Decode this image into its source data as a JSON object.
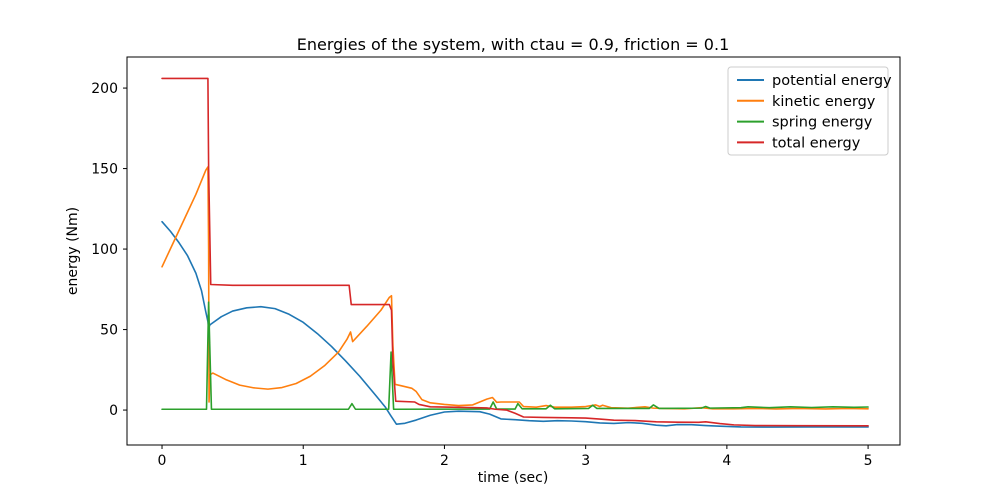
{
  "title": "Energies of the system, with ctau = 0.9, friction = 0.1",
  "chart_data": {
    "type": "line",
    "title": "Energies of the system, with ctau = 0.9, friction = 0.1",
    "xlabel": "time (sec)",
    "ylabel": "energy (Nm)",
    "xlim": [
      -0.248,
      5.226
    ],
    "ylim": [
      -21.7,
      219.3
    ],
    "x_ticks": [
      0,
      1,
      2,
      3,
      4,
      5
    ],
    "y_ticks": [
      0,
      50,
      100,
      150,
      200
    ],
    "grid": false,
    "legend_position": "upper right",
    "background_color": "#ffffff",
    "spine_color": "#000000",
    "legend_border_color": "#cccccc",
    "series": [
      {
        "name": "potential energy",
        "color": "#1f77b4",
        "points": [
          [
            0,
            117
          ],
          [
            0.06,
            111
          ],
          [
            0.12,
            104
          ],
          [
            0.18,
            96
          ],
          [
            0.24,
            85
          ],
          [
            0.28,
            74
          ],
          [
            0.31,
            61
          ],
          [
            0.325,
            55
          ],
          [
            0.33,
            51
          ],
          [
            0.34,
            53
          ],
          [
            0.42,
            58
          ],
          [
            0.5,
            61.5
          ],
          [
            0.6,
            63.5
          ],
          [
            0.7,
            64.2
          ],
          [
            0.8,
            63
          ],
          [
            0.9,
            59.5
          ],
          [
            1.0,
            54.5
          ],
          [
            1.1,
            47.5
          ],
          [
            1.2,
            39.5
          ],
          [
            1.3,
            30.5
          ],
          [
            1.4,
            21
          ],
          [
            1.5,
            10.5
          ],
          [
            1.58,
            2
          ],
          [
            1.62,
            -3.5
          ],
          [
            1.66,
            -8.8
          ],
          [
            1.72,
            -8.2
          ],
          [
            1.8,
            -6.2
          ],
          [
            1.9,
            -3.2
          ],
          [
            2.0,
            -1.2
          ],
          [
            2.1,
            -0.7
          ],
          [
            2.25,
            -1
          ],
          [
            2.32,
            -2.5
          ],
          [
            2.4,
            -5.5
          ],
          [
            2.5,
            -6
          ],
          [
            2.6,
            -6.6
          ],
          [
            2.7,
            -7
          ],
          [
            2.8,
            -6.6
          ],
          [
            2.9,
            -6.8
          ],
          [
            3.0,
            -7.2
          ],
          [
            3.1,
            -8
          ],
          [
            3.2,
            -8.3
          ],
          [
            3.3,
            -7.8
          ],
          [
            3.4,
            -8.2
          ],
          [
            3.5,
            -9.4
          ],
          [
            3.57,
            -9.8
          ],
          [
            3.65,
            -9
          ],
          [
            3.75,
            -9.1
          ],
          [
            3.85,
            -9.6
          ],
          [
            3.95,
            -10
          ],
          [
            4.1,
            -10.5
          ],
          [
            4.3,
            -10.6
          ],
          [
            4.6,
            -10.5
          ],
          [
            5,
            -10.5
          ]
        ]
      },
      {
        "name": "kinetic energy",
        "color": "#ff7f0e",
        "points": [
          [
            0,
            89
          ],
          [
            0.08,
            104
          ],
          [
            0.16,
            119
          ],
          [
            0.24,
            134
          ],
          [
            0.31,
            149
          ],
          [
            0.325,
            151
          ],
          [
            0.33,
            100
          ],
          [
            0.333,
            5
          ],
          [
            0.34,
            22
          ],
          [
            0.36,
            23
          ],
          [
            0.45,
            19
          ],
          [
            0.55,
            15.5
          ],
          [
            0.65,
            13.8
          ],
          [
            0.75,
            13
          ],
          [
            0.85,
            14
          ],
          [
            0.95,
            16.5
          ],
          [
            1.05,
            21
          ],
          [
            1.15,
            27.5
          ],
          [
            1.25,
            36
          ],
          [
            1.31,
            44
          ],
          [
            1.335,
            48.5
          ],
          [
            1.35,
            42.5
          ],
          [
            1.45,
            52
          ],
          [
            1.55,
            62
          ],
          [
            1.61,
            70
          ],
          [
            1.625,
            71
          ],
          [
            1.635,
            40
          ],
          [
            1.65,
            16
          ],
          [
            1.7,
            15
          ],
          [
            1.77,
            13.5
          ],
          [
            1.8,
            11.5
          ],
          [
            1.84,
            6.5
          ],
          [
            1.9,
            4.5
          ],
          [
            2.0,
            3.5
          ],
          [
            2.1,
            2.8
          ],
          [
            2.2,
            3.2
          ],
          [
            2.3,
            6.8
          ],
          [
            2.34,
            7.8
          ],
          [
            2.37,
            4.8
          ],
          [
            2.4,
            5
          ],
          [
            2.53,
            5
          ],
          [
            2.56,
            2.2
          ],
          [
            2.65,
            1.8
          ],
          [
            2.72,
            2.8
          ],
          [
            2.78,
            1.8
          ],
          [
            2.9,
            1.8
          ],
          [
            3.0,
            2.2
          ],
          [
            3.07,
            3.2
          ],
          [
            3.1,
            2.2
          ],
          [
            3.12,
            3
          ],
          [
            3.18,
            1.5
          ],
          [
            3.3,
            1.2
          ],
          [
            3.42,
            2
          ],
          [
            3.48,
            1.2
          ],
          [
            3.55,
            1
          ],
          [
            3.7,
            0.8
          ],
          [
            3.82,
            1.5
          ],
          [
            3.9,
            0.8
          ],
          [
            4.05,
            0.8
          ],
          [
            4.2,
            1
          ],
          [
            4.35,
            0.7
          ],
          [
            4.5,
            1
          ],
          [
            4.7,
            0.7
          ],
          [
            4.85,
            1
          ],
          [
            5,
            0.8
          ]
        ]
      },
      {
        "name": "spring energy",
        "color": "#2ca02c",
        "points": [
          [
            0,
            0.5
          ],
          [
            0.315,
            0.5
          ],
          [
            0.33,
            67
          ],
          [
            0.35,
            0.5
          ],
          [
            1.32,
            0.5
          ],
          [
            1.345,
            4
          ],
          [
            1.37,
            0.5
          ],
          [
            1.605,
            0.5
          ],
          [
            1.622,
            36
          ],
          [
            1.64,
            0.5
          ],
          [
            2.32,
            0.6
          ],
          [
            2.345,
            5
          ],
          [
            2.37,
            0.6
          ],
          [
            2.5,
            0.6
          ],
          [
            2.52,
            4
          ],
          [
            2.55,
            0.8
          ],
          [
            2.72,
            0.8
          ],
          [
            2.75,
            3
          ],
          [
            2.78,
            0.8
          ],
          [
            3.02,
            1
          ],
          [
            3.05,
            3
          ],
          [
            3.08,
            1
          ],
          [
            3.45,
            1
          ],
          [
            3.48,
            3.2
          ],
          [
            3.52,
            1
          ],
          [
            3.82,
            1.2
          ],
          [
            3.85,
            2.2
          ],
          [
            3.88,
            1.2
          ],
          [
            4.1,
            1.5
          ],
          [
            4.15,
            2
          ],
          [
            4.3,
            1.5
          ],
          [
            4.45,
            2
          ],
          [
            4.6,
            1.6
          ],
          [
            4.75,
            2
          ],
          [
            4.9,
            1.7
          ],
          [
            5,
            1.9
          ]
        ]
      },
      {
        "name": "total energy",
        "color": "#d62728",
        "points": [
          [
            0,
            206
          ],
          [
            0.325,
            206
          ],
          [
            0.33,
            150
          ],
          [
            0.345,
            78
          ],
          [
            0.5,
            77.5
          ],
          [
            1.325,
            77.5
          ],
          [
            1.34,
            65.5
          ],
          [
            1.61,
            65.5
          ],
          [
            1.625,
            62
          ],
          [
            1.635,
            30
          ],
          [
            1.655,
            5.5
          ],
          [
            1.79,
            5
          ],
          [
            1.82,
            3.5
          ],
          [
            1.9,
            2
          ],
          [
            2.1,
            1.7
          ],
          [
            2.3,
            1.3
          ],
          [
            2.36,
            0.5
          ],
          [
            2.44,
            0
          ],
          [
            2.5,
            -2
          ],
          [
            2.56,
            -4.3
          ],
          [
            2.7,
            -4.6
          ],
          [
            2.9,
            -4.8
          ],
          [
            3.0,
            -5
          ],
          [
            3.1,
            -5.6
          ],
          [
            3.2,
            -6.3
          ],
          [
            3.35,
            -6.5
          ],
          [
            3.5,
            -7.3
          ],
          [
            3.65,
            -7.5
          ],
          [
            3.8,
            -7.6
          ],
          [
            3.85,
            -7.3
          ],
          [
            3.95,
            -8.4
          ],
          [
            4.05,
            -9.2
          ],
          [
            4.2,
            -9.6
          ],
          [
            4.5,
            -9.7
          ],
          [
            5,
            -9.8
          ]
        ]
      }
    ]
  }
}
